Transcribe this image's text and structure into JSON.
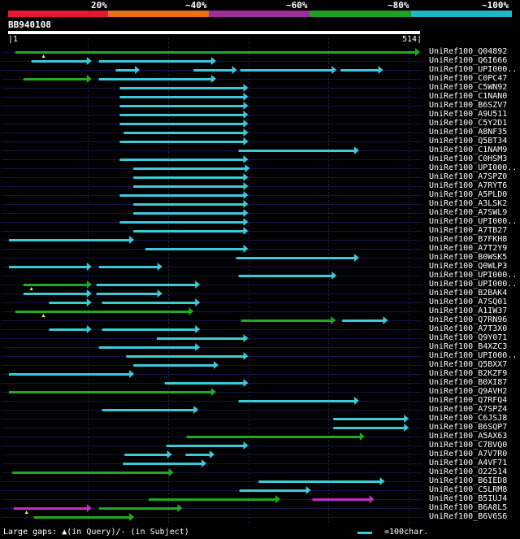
{
  "legend": {
    "labels": [
      "20%",
      "~40%",
      "~60%",
      "~80%",
      "~100%"
    ],
    "colors": [
      "#e8172f",
      "#e87117",
      "#9b2f9b",
      "#20a020",
      "#20b6c8"
    ]
  },
  "query": {
    "id": "BB940108",
    "start": "1",
    "end": "514",
    "length": 514
  },
  "colors": {
    "cyan": "#3cc9d8",
    "green": "#22a822",
    "magenta": "#c030c0",
    "grid": "#1a1a5a",
    "rowline": "#15154a"
  },
  "hits": [
    {
      "name": "UniRef100_Q04892",
      "segs": [
        {
          "s": 10,
          "e": 514,
          "c": "green"
        }
      ],
      "gaps": [
        {
          "pos": 45,
          "type": "query"
        }
      ]
    },
    {
      "name": "UniRef100_Q6I666",
      "segs": [
        {
          "s": 30,
          "e": 105,
          "c": "cyan"
        },
        {
          "s": 114,
          "e": 260,
          "c": "cyan"
        }
      ]
    },
    {
      "name": "UniRef100_UPI000..",
      "segs": [
        {
          "s": 135,
          "e": 165,
          "c": "cyan"
        },
        {
          "s": 232,
          "e": 286,
          "c": "cyan"
        },
        {
          "s": 290,
          "e": 410,
          "c": "cyan"
        },
        {
          "s": 415,
          "e": 468,
          "c": "cyan"
        }
      ]
    },
    {
      "name": "UniRef100_C0PC47",
      "segs": [
        {
          "s": 20,
          "e": 105,
          "c": "green"
        },
        {
          "s": 114,
          "e": 260,
          "c": "cyan"
        }
      ]
    },
    {
      "name": "UniRef100_C5WN92",
      "segs": [
        {
          "s": 140,
          "e": 300,
          "c": "cyan"
        }
      ]
    },
    {
      "name": "UniRef100_C1NAN0",
      "segs": [
        {
          "s": 140,
          "e": 300,
          "c": "cyan"
        }
      ]
    },
    {
      "name": "UniRef100_B6SZV7",
      "segs": [
        {
          "s": 140,
          "e": 300,
          "c": "cyan"
        }
      ]
    },
    {
      "name": "UniRef100_A9U511",
      "segs": [
        {
          "s": 140,
          "e": 300,
          "c": "cyan"
        }
      ]
    },
    {
      "name": "UniRef100_C5Y2D1",
      "segs": [
        {
          "s": 140,
          "e": 300,
          "c": "cyan"
        }
      ]
    },
    {
      "name": "UniRef100_A8NF35",
      "segs": [
        {
          "s": 145,
          "e": 300,
          "c": "cyan"
        }
      ]
    },
    {
      "name": "UniRef100_Q5BT34",
      "segs": [
        {
          "s": 140,
          "e": 300,
          "c": "cyan"
        }
      ]
    },
    {
      "name": "UniRef100_C1NAM9",
      "segs": [
        {
          "s": 288,
          "e": 438,
          "c": "cyan"
        }
      ]
    },
    {
      "name": "UniRef100_C0HSM3",
      "segs": [
        {
          "s": 140,
          "e": 300,
          "c": "cyan"
        }
      ]
    },
    {
      "name": "UniRef100_UPI000..",
      "segs": [
        {
          "s": 157,
          "e": 302,
          "c": "cyan"
        }
      ]
    },
    {
      "name": "UniRef100_A7SPZ0",
      "segs": [
        {
          "s": 157,
          "e": 300,
          "c": "cyan"
        }
      ]
    },
    {
      "name": "UniRef100_A7RYT6",
      "segs": [
        {
          "s": 157,
          "e": 300,
          "c": "cyan"
        }
      ]
    },
    {
      "name": "UniRef100_A5PLD0",
      "segs": [
        {
          "s": 140,
          "e": 300,
          "c": "cyan"
        }
      ]
    },
    {
      "name": "UniRef100_A3LSK2",
      "segs": [
        {
          "s": 157,
          "e": 300,
          "c": "cyan"
        }
      ]
    },
    {
      "name": "UniRef100_A7SWL9",
      "segs": [
        {
          "s": 157,
          "e": 300,
          "c": "cyan"
        }
      ]
    },
    {
      "name": "UniRef100_UPI000..",
      "segs": [
        {
          "s": 140,
          "e": 300,
          "c": "cyan"
        }
      ]
    },
    {
      "name": "UniRef100_A7TB27",
      "segs": [
        {
          "s": 157,
          "e": 300,
          "c": "cyan"
        }
      ]
    },
    {
      "name": "UniRef100_B7FKH8",
      "segs": [
        {
          "s": 2,
          "e": 158,
          "c": "cyan"
        }
      ]
    },
    {
      "name": "UniRef100_A7T2Y9",
      "segs": [
        {
          "s": 172,
          "e": 300,
          "c": "cyan"
        }
      ]
    },
    {
      "name": "UniRef100_B0WSK5",
      "segs": [
        {
          "s": 285,
          "e": 438,
          "c": "cyan"
        }
      ]
    },
    {
      "name": "UniRef100_Q0WLP3",
      "segs": [
        {
          "s": 2,
          "e": 105,
          "c": "cyan"
        },
        {
          "s": 114,
          "e": 193,
          "c": "cyan"
        }
      ]
    },
    {
      "name": "UniRef100_UPI000..",
      "segs": [
        {
          "s": 288,
          "e": 410,
          "c": "cyan"
        }
      ]
    },
    {
      "name": "UniRef100_UPI000..",
      "segs": [
        {
          "s": 20,
          "e": 105,
          "c": "green"
        },
        {
          "s": 111,
          "e": 240,
          "c": "cyan"
        }
      ],
      "gaps": [
        {
          "pos": 30,
          "type": "query"
        }
      ]
    },
    {
      "name": "UniRef100_B2BAK4",
      "segs": [
        {
          "s": 20,
          "e": 105,
          "c": "cyan"
        },
        {
          "s": 111,
          "e": 193,
          "c": "cyan"
        }
      ]
    },
    {
      "name": "UniRef100_A7SQ01",
      "segs": [
        {
          "s": 52,
          "e": 105,
          "c": "cyan"
        },
        {
          "s": 118,
          "e": 240,
          "c": "cyan"
        }
      ]
    },
    {
      "name": "UniRef100_A1IW37",
      "segs": [
        {
          "s": 10,
          "e": 232,
          "c": "green"
        }
      ],
      "gaps": [
        {
          "pos": 45,
          "type": "query"
        }
      ]
    },
    {
      "name": "UniRef100_Q7RN96",
      "segs": [
        {
          "s": 291,
          "e": 409,
          "c": "green"
        },
        {
          "s": 417,
          "e": 474,
          "c": "cyan"
        }
      ]
    },
    {
      "name": "UniRef100_A7T3X0",
      "segs": [
        {
          "s": 52,
          "e": 105,
          "c": "cyan"
        },
        {
          "s": 118,
          "e": 240,
          "c": "cyan"
        }
      ]
    },
    {
      "name": "UniRef100_Q9Y071",
      "segs": [
        {
          "s": 186,
          "e": 300,
          "c": "cyan"
        }
      ]
    },
    {
      "name": "UniRef100_B4XZC3",
      "segs": [
        {
          "s": 114,
          "e": 240,
          "c": "cyan"
        }
      ]
    },
    {
      "name": "UniRef100_UPI000..",
      "segs": [
        {
          "s": 148,
          "e": 300,
          "c": "cyan"
        }
      ]
    },
    {
      "name": "UniRef100_Q5BXX7",
      "segs": [
        {
          "s": 157,
          "e": 263,
          "c": "cyan"
        }
      ]
    },
    {
      "name": "UniRef100_B2KZF9",
      "segs": [
        {
          "s": 2,
          "e": 158,
          "c": "cyan"
        }
      ]
    },
    {
      "name": "UniRef100_B0XI87",
      "segs": [
        {
          "s": 196,
          "e": 300,
          "c": "cyan"
        }
      ]
    },
    {
      "name": "UniRef100_Q9AVH2",
      "segs": [
        {
          "s": 2,
          "e": 260,
          "c": "green"
        }
      ]
    },
    {
      "name": "UniRef100_Q7RFQ4",
      "segs": [
        {
          "s": 288,
          "e": 438,
          "c": "cyan"
        }
      ]
    },
    {
      "name": "UniRef100_A7SPZ4",
      "segs": [
        {
          "s": 118,
          "e": 238,
          "c": "cyan"
        }
      ]
    },
    {
      "name": "UniRef100_C6JSJ8",
      "segs": [
        {
          "s": 406,
          "e": 500,
          "c": "cyan"
        }
      ]
    },
    {
      "name": "UniRef100_B6SQP7",
      "segs": [
        {
          "s": 406,
          "e": 500,
          "c": "cyan"
        }
      ]
    },
    {
      "name": "UniRef100_A5AX63",
      "segs": [
        {
          "s": 223,
          "e": 445,
          "c": "green"
        }
      ]
    },
    {
      "name": "UniRef100_C7BVQ0",
      "segs": [
        {
          "s": 198,
          "e": 300,
          "c": "cyan"
        }
      ]
    },
    {
      "name": "UniRef100_A7V7R0",
      "segs": [
        {
          "s": 146,
          "e": 205,
          "c": "cyan"
        },
        {
          "s": 222,
          "e": 258,
          "c": "cyan"
        }
      ]
    },
    {
      "name": "UniRef100_A4VF71",
      "segs": [
        {
          "s": 144,
          "e": 248,
          "c": "cyan"
        }
      ]
    },
    {
      "name": "UniRef100_O22514",
      "segs": [
        {
          "s": 6,
          "e": 207,
          "c": "green"
        }
      ]
    },
    {
      "name": "UniRef100_B6IED8",
      "segs": [
        {
          "s": 313,
          "e": 470,
          "c": "cyan"
        }
      ]
    },
    {
      "name": "UniRef100_C5LRM8",
      "segs": [
        {
          "s": 289,
          "e": 378,
          "c": "cyan"
        }
      ]
    },
    {
      "name": "UniRef100_B5IUJ4",
      "segs": [
        {
          "s": 176,
          "e": 340,
          "c": "green"
        },
        {
          "s": 380,
          "e": 457,
          "c": "magenta"
        }
      ]
    },
    {
      "name": "UniRef100_B6A8L5",
      "segs": [
        {
          "s": 8,
          "e": 105,
          "c": "magenta"
        },
        {
          "s": 114,
          "e": 218,
          "c": "green"
        }
      ],
      "gaps": [
        {
          "pos": 24,
          "type": "query"
        }
      ]
    },
    {
      "name": "UniRef100_B6V6S6",
      "segs": [
        {
          "s": 33,
          "e": 158,
          "c": "green"
        }
      ]
    }
  ],
  "footer": {
    "left": "Large gaps: ▲(in Query)/- (in Subject)",
    "right": "=100char."
  }
}
